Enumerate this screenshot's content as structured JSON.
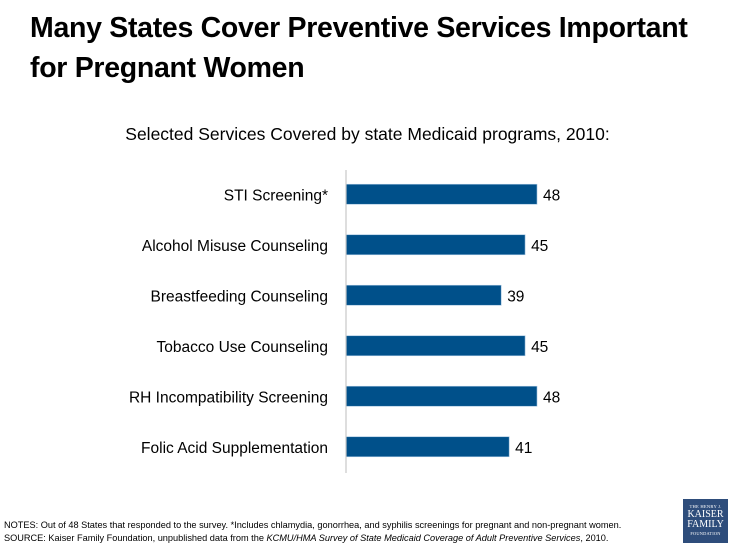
{
  "title": "Many States Cover Preventive Services Important for Pregnant Women",
  "subtitle": "Selected Services Covered by state Medicaid programs, 2010:",
  "chart_data": {
    "type": "bar",
    "orientation": "horizontal",
    "title": "Selected Services Covered by state Medicaid programs, 2010:",
    "categories": [
      "STI Screening*",
      "Alcohol Misuse Counseling",
      "Breastfeeding Counseling",
      "Tobacco Use Counseling",
      "RH Incompatibility Screening",
      "Folic Acid Supplementation"
    ],
    "values": [
      48,
      45,
      39,
      45,
      48,
      41
    ],
    "data_labels": [
      "48",
      "45",
      "39",
      "45",
      "48",
      "41"
    ],
    "xlabel": "",
    "ylabel": "",
    "xlim": [
      0,
      48
    ],
    "grid": false,
    "legend": "none",
    "bar_color": "#00508a"
  },
  "notes": {
    "notes_line": "NOTES: Out of 48 States that responded to the survey. *Includes chlamydia, gonorrhea, and syphilis screenings for pregnant and non-pregnant women.",
    "source_prefix": "SOURCE: Kaiser Family Foundation, unpublished data from the ",
    "source_italic": "KCMU/HMA Survey of State Medicaid Coverage of Adult Preventive Services",
    "source_suffix": ", 2010."
  },
  "logo": {
    "line1": "THE HENRY J.",
    "line2": "KAISER",
    "line3": "FAMILY",
    "line4": "FOUNDATION"
  }
}
